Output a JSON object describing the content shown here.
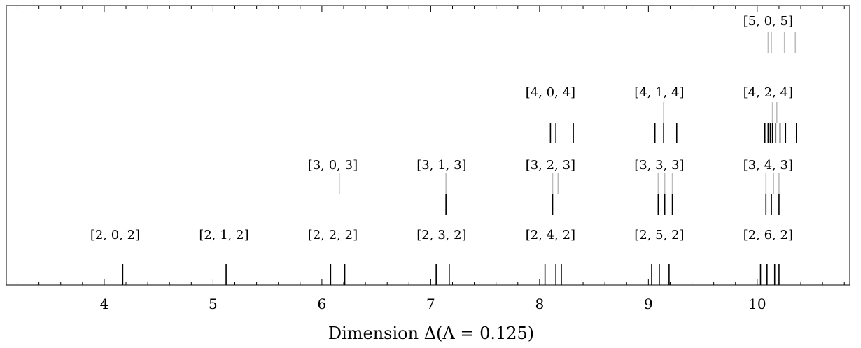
{
  "chart_data": {
    "type": "spectrum",
    "xlabel": "Dimension Δ(Λ = 0.125)",
    "xlim": [
      3.1,
      10.85
    ],
    "xticks": [
      4,
      5,
      6,
      7,
      8,
      9,
      10
    ],
    "groups": [
      {
        "label": "[2, 0, 2]",
        "row": 0,
        "x_center": 4.1,
        "black": [
          4.17
        ],
        "gray": []
      },
      {
        "label": "[2, 1, 2]",
        "row": 0,
        "x_center": 5.1,
        "black": [
          5.12
        ],
        "gray": []
      },
      {
        "label": "[2, 2, 2]",
        "row": 0,
        "x_center": 6.1,
        "black": [
          6.08,
          6.21
        ],
        "gray": []
      },
      {
        "label": "[2, 3, 2]",
        "row": 0,
        "x_center": 7.1,
        "black": [
          7.05,
          7.17
        ],
        "gray": []
      },
      {
        "label": "[2, 4, 2]",
        "row": 0,
        "x_center": 8.1,
        "black": [
          8.05,
          8.15,
          8.2
        ],
        "gray": []
      },
      {
        "label": "[2, 5, 2]",
        "row": 0,
        "x_center": 9.1,
        "black": [
          9.03,
          9.1,
          9.19
        ],
        "gray": []
      },
      {
        "label": "[2, 6, 2]",
        "row": 0,
        "x_center": 10.1,
        "black": [
          10.03,
          10.09,
          10.16,
          10.2
        ],
        "gray": []
      },
      {
        "label": "[3, 0, 3]",
        "row": 1,
        "x_center": 6.1,
        "black": [],
        "gray": [
          6.16
        ]
      },
      {
        "label": "[3, 1, 3]",
        "row": 1,
        "x_center": 7.1,
        "black": [
          7.14
        ],
        "gray": [
          7.14
        ]
      },
      {
        "label": "[3, 2, 3]",
        "row": 1,
        "x_center": 8.1,
        "black": [
          8.12
        ],
        "gray": [
          8.12,
          8.17
        ]
      },
      {
        "label": "[3, 3, 3]",
        "row": 1,
        "x_center": 9.1,
        "black": [
          9.09,
          9.15,
          9.22
        ],
        "gray": [
          9.09,
          9.15,
          9.22
        ]
      },
      {
        "label": "[3, 4, 3]",
        "row": 1,
        "x_center": 10.1,
        "black": [
          10.08,
          10.13,
          10.2
        ],
        "gray": [
          10.08,
          10.15,
          10.2
        ]
      },
      {
        "label": "[4, 0, 4]",
        "row": 2,
        "x_center": 8.1,
        "black": [
          8.1,
          8.15,
          8.31
        ],
        "gray": []
      },
      {
        "label": "[4, 1, 4]",
        "row": 2,
        "x_center": 9.1,
        "black": [
          9.06,
          9.14,
          9.26
        ],
        "gray": [
          9.14
        ]
      },
      {
        "label": "[4, 2, 4]",
        "row": 2,
        "x_center": 10.1,
        "black": [
          10.07,
          10.1,
          10.12,
          10.14,
          10.17,
          10.21,
          10.26,
          10.36
        ],
        "gray": [
          10.14,
          10.18
        ]
      },
      {
        "label": "[5, 0, 5]",
        "row": 3,
        "x_center": 10.1,
        "black": [],
        "gray": [
          10.1,
          10.13,
          10.25,
          10.35
        ]
      }
    ],
    "colors": {
      "black": "#000000",
      "gray": "#bdbdbd"
    }
  }
}
